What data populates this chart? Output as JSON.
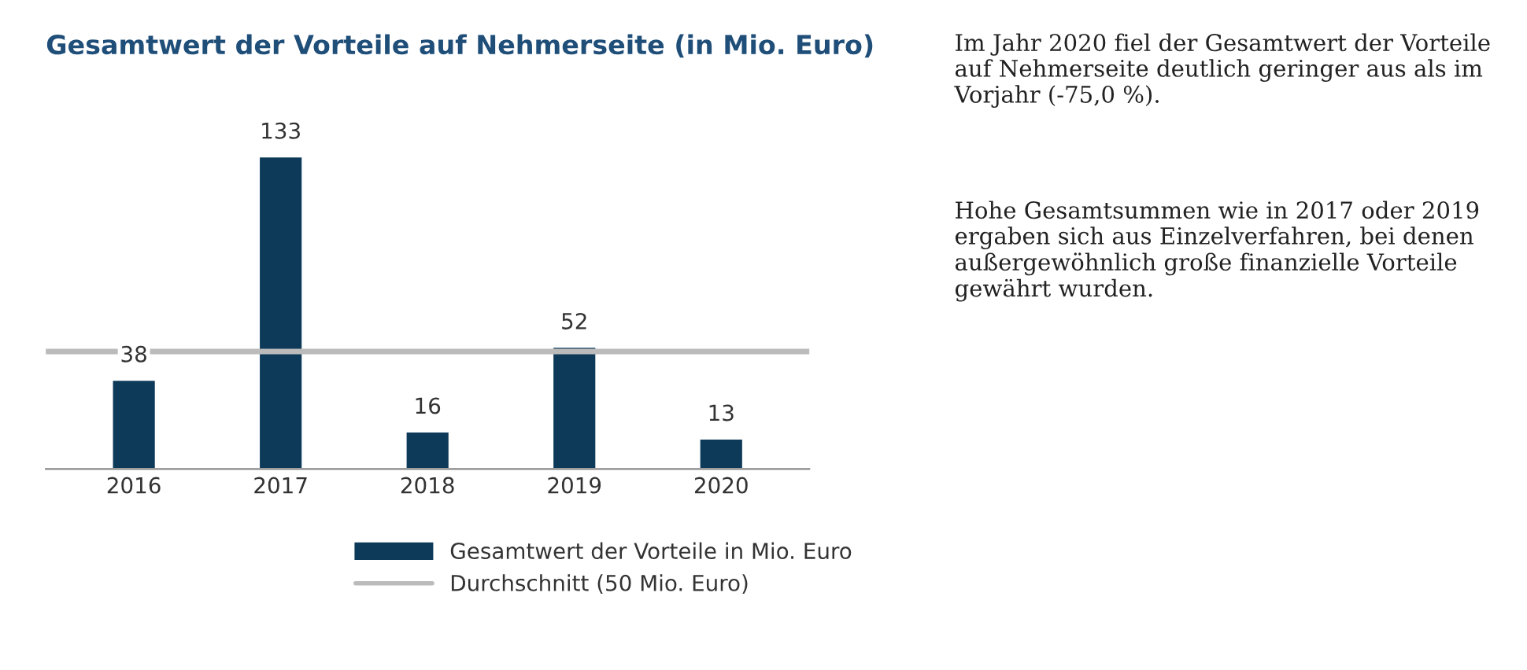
{
  "chart_data": {
    "type": "bar",
    "title": "Gesamtwert der Vorteile auf Nehmerseite (in Mio. Euro)",
    "categories": [
      "2016",
      "2017",
      "2018",
      "2019",
      "2020"
    ],
    "series": [
      {
        "name": "Gesamtwert der Vorteile in Mio. Euro",
        "color": "#0e3a5a",
        "values": [
          38,
          133,
          16,
          52,
          13
        ]
      }
    ],
    "data_labels": true,
    "tick_labels": "x",
    "grid": false,
    "legend": "bottom",
    "ref_lines": [
      {
        "axis": "y",
        "value": 50,
        "label": "Durchschnitt (50 Mio. Euro)",
        "color": "#bbbbbb"
      }
    ],
    "annotations": [
      "Im Jahr 2020 fiel der Gesamtwert der Vorteile auf Nehmerseite deutlich geringer aus als im Vorjahr (-75,0 %).",
      "Hohe Gesamtsummen wie in 2017 oder 2019 ergaben sich aus Einzelverfahren, bei denen außergewöhnlich große finanzielle Vorteile gewährt wurden."
    ]
  }
}
